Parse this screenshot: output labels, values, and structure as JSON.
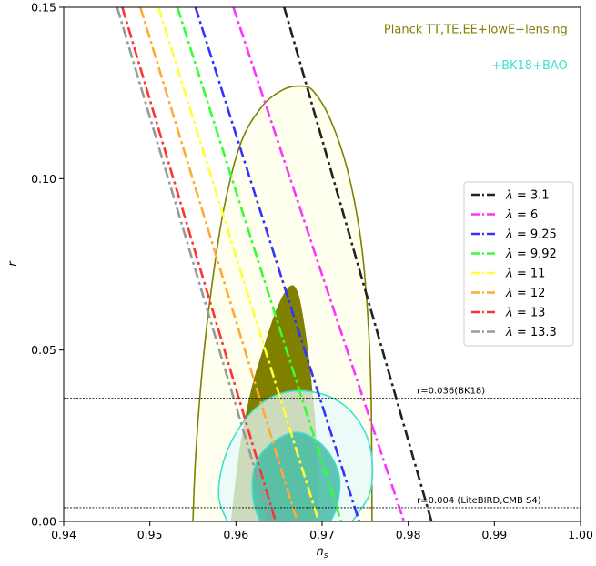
{
  "chart_data": {
    "type": "contour",
    "xlabel": "n_s",
    "xlabel_main": "n",
    "xlabel_sub": "s",
    "ylabel": "r",
    "xlim": [
      0.94,
      1.0
    ],
    "ylim": [
      0.0,
      0.15
    ],
    "xticks": [
      0.94,
      0.95,
      0.96,
      0.97,
      0.98,
      0.99,
      1.0
    ],
    "xtick_labels": [
      "0.94",
      "0.95",
      "0.96",
      "0.97",
      "0.98",
      "0.99",
      "1.00"
    ],
    "yticks": [
      0.0,
      0.05,
      0.1,
      0.15
    ],
    "ytick_labels": [
      "0.00",
      "0.05",
      "0.10",
      "0.15"
    ],
    "grid": false,
    "legend_position": "right",
    "contours": [
      {
        "name": "Planck TT,TE,EE+lowE+lensing",
        "color": "#808000",
        "regions": [
          {
            "level": "68%",
            "fill": "#808000",
            "points": [
              [
                0.9595,
                0.0
              ],
              [
                0.9605,
                0.021
              ],
              [
                0.9618,
                0.038
              ],
              [
                0.9632,
                0.05
              ],
              [
                0.9648,
                0.062
              ],
              [
                0.9663,
                0.0685
              ],
              [
                0.9672,
                0.066
              ],
              [
                0.968,
                0.055
              ],
              [
                0.9688,
                0.038
              ],
              [
                0.9693,
                0.022
              ],
              [
                0.9695,
                0.0
              ]
            ]
          },
          {
            "level": "95%",
            "fill": "#fffff0",
            "points": [
              [
                0.955,
                0.0
              ],
              [
                0.9553,
                0.018
              ],
              [
                0.956,
                0.042
              ],
              [
                0.957,
                0.065
              ],
              [
                0.9585,
                0.09
              ],
              [
                0.9605,
                0.11
              ],
              [
                0.963,
                0.121
              ],
              [
                0.9655,
                0.126
              ],
              [
                0.9675,
                0.127
              ],
              [
                0.969,
                0.1255
              ],
              [
                0.971,
                0.117
              ],
              [
                0.973,
                0.102
              ],
              [
                0.9745,
                0.082
              ],
              [
                0.9753,
                0.06
              ],
              [
                0.9757,
                0.035
              ],
              [
                0.9758,
                0.0
              ]
            ]
          }
        ]
      },
      {
        "name": "+BK18+BAO",
        "color": "#40e0d0",
        "regions": [
          {
            "level": "68%",
            "fill": "#3cb8a0",
            "points": [
              [
                0.9628,
                0.0
              ],
              [
                0.962,
                0.006
              ],
              [
                0.962,
                0.014
              ],
              [
                0.963,
                0.02
              ],
              [
                0.965,
                0.0243
              ],
              [
                0.967,
                0.026
              ],
              [
                0.969,
                0.0243
              ],
              [
                0.9708,
                0.02
              ],
              [
                0.972,
                0.013
              ],
              [
                0.9718,
                0.005
              ],
              [
                0.971,
                0.0
              ]
            ]
          },
          {
            "level": "95%",
            "fill": "#e6fafa",
            "points": [
              [
                0.959,
                0.0
              ],
              [
                0.958,
                0.007
              ],
              [
                0.9585,
                0.017
              ],
              [
                0.9603,
                0.027
              ],
              [
                0.963,
                0.0345
              ],
              [
                0.966,
                0.0378
              ],
              [
                0.9695,
                0.0375
              ],
              [
                0.9725,
                0.034
              ],
              [
                0.9748,
                0.027
              ],
              [
                0.9758,
                0.018
              ],
              [
                0.9755,
                0.008
              ],
              [
                0.9735,
                0.0
              ]
            ]
          }
        ]
      }
    ],
    "series": [
      {
        "name": "λ = 3.1",
        "legend_symbol": "λ",
        "legend_value": "= 3.1",
        "color": "#222222",
        "style": "dash-dot",
        "x": [
          0.9656,
          0.9827
        ],
        "y": [
          0.15,
          0.0
        ]
      },
      {
        "name": "λ = 6",
        "legend_symbol": "λ",
        "legend_value": "= 6",
        "color": "#ff33ff",
        "style": "dash-dot",
        "x": [
          0.9597,
          0.9795
        ],
        "y": [
          0.15,
          0.0
        ]
      },
      {
        "name": "λ = 9.25",
        "legend_symbol": "λ",
        "legend_value": "= 9.25",
        "color": "#3333ff",
        "style": "dash-dot",
        "x": [
          0.9553,
          0.9743
        ],
        "y": [
          0.15,
          0.0
        ]
      },
      {
        "name": "λ = 9.92",
        "legend_symbol": "λ",
        "legend_value": "= 9.92",
        "color": "#33ff33",
        "style": "dash-dot",
        "x": [
          0.9532,
          0.9722
        ],
        "y": [
          0.15,
          0.0
        ]
      },
      {
        "name": "λ = 11",
        "legend_symbol": "λ",
        "legend_value": "= 11",
        "color": "#ffff33",
        "style": "dash-dot",
        "x": [
          0.951,
          0.9696
        ],
        "y": [
          0.15,
          0.0
        ]
      },
      {
        "name": "λ = 12",
        "legend_symbol": "λ",
        "legend_value": "= 12",
        "color": "#ffaa33",
        "style": "dash-dot",
        "x": [
          0.9489,
          0.9671
        ],
        "y": [
          0.15,
          0.0
        ]
      },
      {
        "name": "λ = 13",
        "legend_symbol": "λ",
        "legend_value": "= 13",
        "color": "#ff3333",
        "style": "dash-dot",
        "x": [
          0.9468,
          0.9646
        ],
        "y": [
          0.15,
          0.0
        ]
      },
      {
        "name": "λ = 13.3",
        "legend_symbol": "λ",
        "legend_value": "= 13.3",
        "color": "#999999",
        "style": "dash-dot",
        "x": [
          0.9462,
          0.964
        ],
        "y": [
          0.15,
          0.0
        ]
      }
    ],
    "hlines": [
      {
        "y": 0.036,
        "label": "r=0.036(BK18)",
        "label_x": 0.981
      },
      {
        "y": 0.004,
        "label": "r=0.004 (LiteBIRD,CMB S4)",
        "label_x": 0.981
      }
    ],
    "annotations": [
      {
        "text": "Planck TT,TE,EE+lowE+lensing",
        "x": 0.9985,
        "y": 0.1425,
        "color": "#808000",
        "anchor": "end"
      },
      {
        "text": "+BK18+BAO",
        "x": 0.9985,
        "y": 0.132,
        "color": "#40e0d0",
        "anchor": "end"
      }
    ]
  }
}
